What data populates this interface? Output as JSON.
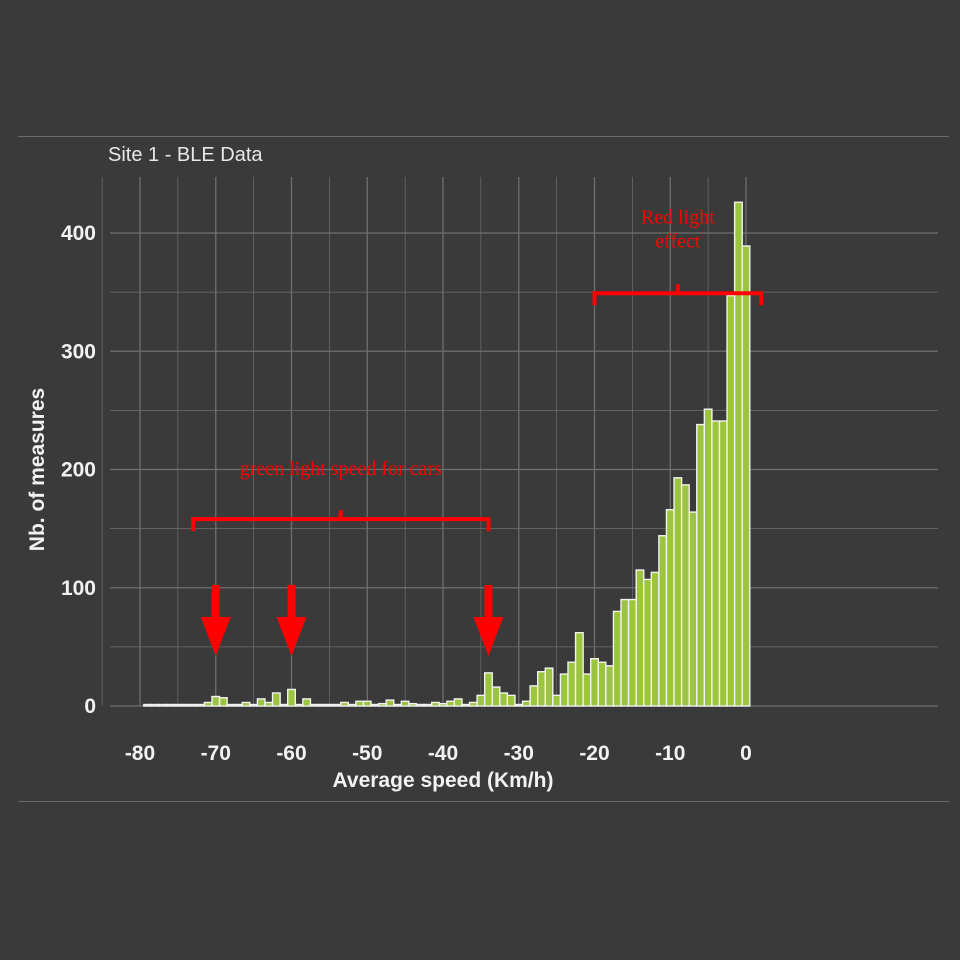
{
  "chart_data": {
    "type": "bar",
    "title": "Site 1 - BLE Data",
    "xlabel": "Average speed (Km/h)",
    "ylabel": "Nb. of measures",
    "xlim": [
      -82,
      2
    ],
    "ylim": [
      0,
      430
    ],
    "x_ticks": [
      -80,
      -70,
      -60,
      -50,
      -40,
      -30,
      -20,
      -10,
      0
    ],
    "y_ticks": [
      0,
      100,
      200,
      300,
      400
    ],
    "grid": true,
    "bin_width": 1,
    "bins": [
      {
        "x": -79,
        "y": 1
      },
      {
        "x": -78,
        "y": 0
      },
      {
        "x": -77,
        "y": 0
      },
      {
        "x": -76,
        "y": 0
      },
      {
        "x": -75,
        "y": 0
      },
      {
        "x": -74,
        "y": 1
      },
      {
        "x": -73,
        "y": 0
      },
      {
        "x": -72,
        "y": 0
      },
      {
        "x": -71,
        "y": 3
      },
      {
        "x": -70,
        "y": 8
      },
      {
        "x": -69,
        "y": 7
      },
      {
        "x": -68,
        "y": 1
      },
      {
        "x": -67,
        "y": 1
      },
      {
        "x": -66,
        "y": 3
      },
      {
        "x": -65,
        "y": 1
      },
      {
        "x": -64,
        "y": 6
      },
      {
        "x": -63,
        "y": 3
      },
      {
        "x": -62,
        "y": 11
      },
      {
        "x": -61,
        "y": 0
      },
      {
        "x": -60,
        "y": 14
      },
      {
        "x": -59,
        "y": 1
      },
      {
        "x": -58,
        "y": 6
      },
      {
        "x": -57,
        "y": 0
      },
      {
        "x": -56,
        "y": 1
      },
      {
        "x": -55,
        "y": 1
      },
      {
        "x": -54,
        "y": 1
      },
      {
        "x": -53,
        "y": 3
      },
      {
        "x": -52,
        "y": 1
      },
      {
        "x": -51,
        "y": 4
      },
      {
        "x": -50,
        "y": 4
      },
      {
        "x": -49,
        "y": 1
      },
      {
        "x": -48,
        "y": 2
      },
      {
        "x": -47,
        "y": 5
      },
      {
        "x": -46,
        "y": 1
      },
      {
        "x": -45,
        "y": 4
      },
      {
        "x": -44,
        "y": 2
      },
      {
        "x": -43,
        "y": 1
      },
      {
        "x": -42,
        "y": 1
      },
      {
        "x": -41,
        "y": 3
      },
      {
        "x": -40,
        "y": 2
      },
      {
        "x": -39,
        "y": 4
      },
      {
        "x": -38,
        "y": 6
      },
      {
        "x": -37,
        "y": 1
      },
      {
        "x": -36,
        "y": 3
      },
      {
        "x": -35,
        "y": 9
      },
      {
        "x": -34,
        "y": 28
      },
      {
        "x": -33,
        "y": 16
      },
      {
        "x": -32,
        "y": 11
      },
      {
        "x": -31,
        "y": 9
      },
      {
        "x": -30,
        "y": 1
      },
      {
        "x": -29,
        "y": 4
      },
      {
        "x": -28,
        "y": 17
      },
      {
        "x": -27,
        "y": 29
      },
      {
        "x": -26,
        "y": 32
      },
      {
        "x": -25,
        "y": 9
      },
      {
        "x": -24,
        "y": 27
      },
      {
        "x": -23,
        "y": 37
      },
      {
        "x": -22,
        "y": 62
      },
      {
        "x": -21,
        "y": 27
      },
      {
        "x": -20,
        "y": 40
      },
      {
        "x": -19,
        "y": 37
      },
      {
        "x": -18,
        "y": 34
      },
      {
        "x": -17,
        "y": 80
      },
      {
        "x": -16,
        "y": 90
      },
      {
        "x": -15,
        "y": 90
      },
      {
        "x": -14,
        "y": 115
      },
      {
        "x": -13,
        "y": 107
      },
      {
        "x": -12,
        "y": 113
      },
      {
        "x": -11,
        "y": 144
      },
      {
        "x": -10,
        "y": 166
      },
      {
        "x": -9,
        "y": 193
      },
      {
        "x": -8,
        "y": 187
      },
      {
        "x": -7,
        "y": 164
      },
      {
        "x": -6,
        "y": 238
      },
      {
        "x": -5,
        "y": 251
      },
      {
        "x": -4,
        "y": 241
      },
      {
        "x": -3,
        "y": 241
      },
      {
        "x": -2,
        "y": 347
      },
      {
        "x": -1,
        "y": 426
      },
      {
        "x": 0,
        "y": 389
      }
    ],
    "annotations": [
      {
        "text": "green light speed for cars",
        "range": [
          -73,
          -34
        ],
        "y": 158
      },
      {
        "text": "Red light effect",
        "lines": [
          "Red light",
          "effect"
        ],
        "range": [
          -20,
          2
        ],
        "y": 349
      }
    ],
    "arrows_at": [
      -70,
      -60,
      -34
    ]
  },
  "colors": {
    "background": "#3a3a3a",
    "bar_fill": "#9bc53d",
    "bar_stroke": "#f2f2f2",
    "grid": "#6f6f6f",
    "annotation": "#ff0000",
    "text": "#f2f2f2"
  }
}
